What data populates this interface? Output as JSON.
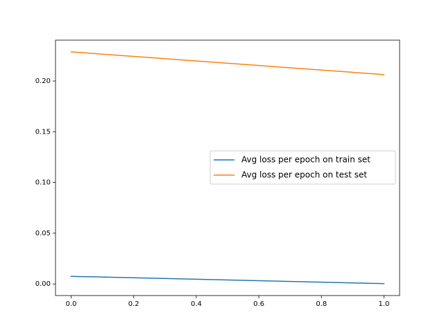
{
  "chart_data": {
    "type": "line",
    "title": "",
    "xlabel": "",
    "ylabel": "",
    "xlim": [
      -0.05,
      1.05
    ],
    "ylim": [
      -0.01144,
      0.24025
    ],
    "x_ticks": [
      0.0,
      0.2,
      0.4,
      0.6,
      0.8,
      1.0
    ],
    "x_tick_labels": [
      "0.0",
      "0.2",
      "0.4",
      "0.6",
      "0.8",
      "1.0"
    ],
    "y_ticks": [
      0.0,
      0.05,
      0.1,
      0.15,
      0.2
    ],
    "y_tick_labels": [
      "0.00",
      "0.05",
      "0.10",
      "0.15",
      "0.20"
    ],
    "grid": false,
    "legend_position": "center-right",
    "series": [
      {
        "name": "Avg loss per epoch on train set",
        "color": "#1f77b4",
        "x": [
          0,
          1
        ],
        "y": [
          0.0075,
          0.0003
        ]
      },
      {
        "name": "Avg loss per epoch on test set",
        "color": "#ff7f0e",
        "x": [
          0,
          1
        ],
        "y": [
          0.2287,
          0.2063
        ]
      }
    ]
  }
}
